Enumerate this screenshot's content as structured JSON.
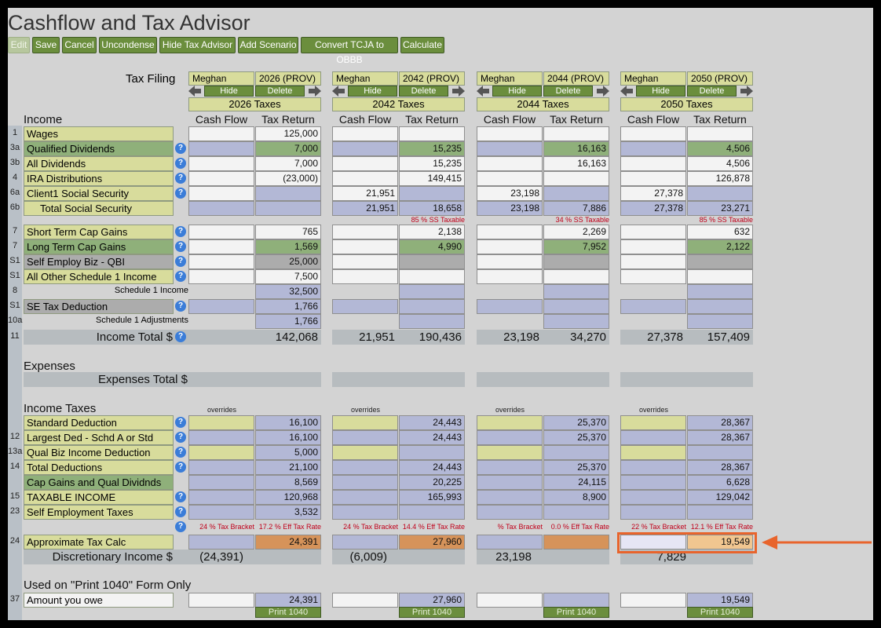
{
  "app": {
    "title": "Cashflow and Tax Advisor"
  },
  "toolbar": [
    "Edit",
    "Save",
    "Cancel",
    "Uncondense",
    "Hide Tax Advisor",
    "Add Scenario",
    "Convert TCJA to OBBB",
    "Calculate"
  ],
  "labels": {
    "tax_filing": "Tax Filing",
    "income": "Income",
    "expenses": "Expenses",
    "expenses_total": "Expenses Total $",
    "income_taxes": "Income Taxes",
    "used_on": "Used on \"Print 1040\" Form Only",
    "cash_flow": "Cash Flow",
    "tax_return": "Tax Return",
    "overrides": "overrides",
    "hide": "Hide",
    "delete": "Delete",
    "print": "Print 1040",
    "help": "?"
  },
  "income_rows": [
    {
      "num": "1",
      "label": "Wages",
      "style": "tan",
      "help": false
    },
    {
      "num": "3a",
      "label": "Qualified Dividends",
      "style": "green",
      "help": true
    },
    {
      "num": "3b",
      "label": "All Dividends",
      "style": "tan",
      "help": true
    },
    {
      "num": "4",
      "label": "IRA Distributions",
      "style": "tan",
      "help": true
    },
    {
      "num": "6a",
      "label": "Client1 Social Security",
      "style": "tan",
      "help": true
    },
    {
      "num": "6b",
      "label": "Total Social Security",
      "style": "tan",
      "help": false
    },
    {
      "num": "7",
      "label": "Short Term Cap Gains",
      "style": "tan",
      "help": true
    },
    {
      "num": "7",
      "label": "Long Term Cap Gains",
      "style": "green",
      "help": true
    },
    {
      "num": "S1",
      "label": "Self Employ Biz - QBI",
      "style": "gray",
      "help": true
    },
    {
      "num": "S1",
      "label": "All Other Schedule 1 Income",
      "style": "tan",
      "help": true
    },
    {
      "num": "8",
      "label": "Schedule 1 Income",
      "style": "plain",
      "help": false
    },
    {
      "num": "S1",
      "label": "SE Tax Deduction",
      "style": "gray",
      "help": true
    },
    {
      "num": "10a",
      "label": "Schedule 1 Adjustments",
      "style": "plain",
      "help": false
    },
    {
      "num": "11",
      "label": "Income Total $",
      "style": "total",
      "help": true
    }
  ],
  "tax_rows": [
    {
      "num": "",
      "label": "Standard Deduction",
      "style": "tan",
      "help": true
    },
    {
      "num": "12",
      "label": "Largest Ded - Schd A or Std",
      "style": "tan",
      "help": true
    },
    {
      "num": "13a",
      "label": "Qual Biz Income Deduction",
      "style": "tan",
      "help": true
    },
    {
      "num": "14",
      "label": "Total Deductions",
      "style": "tan",
      "help": true
    },
    {
      "num": "",
      "label": "Cap Gains and Qual Dividnds",
      "style": "green",
      "help": false
    },
    {
      "num": "15",
      "label": "TAXABLE INCOME",
      "style": "tan",
      "help": true
    },
    {
      "num": "23",
      "label": "Self Employment Taxes",
      "style": "tan",
      "help": true
    },
    {
      "num": "24",
      "label": "Approximate Tax Calc",
      "style": "tan",
      "help": false
    },
    {
      "num": "",
      "label": "Discretionary Income $",
      "style": "total",
      "help": false
    }
  ],
  "form_rows": [
    {
      "num": "37",
      "label": "Amount you owe"
    }
  ],
  "scenarios": [
    {
      "person": "Meghan",
      "year": "2026 (PROV)",
      "header": "2026 Taxes",
      "income": [
        [
          "",
          "125,000"
        ],
        [
          "",
          "7,000"
        ],
        [
          "",
          "7,000"
        ],
        [
          "",
          "(23,000)"
        ],
        [
          "",
          ""
        ],
        [
          "",
          ""
        ],
        [
          "",
          "765"
        ],
        [
          "",
          "1,569"
        ],
        [
          "",
          "25,000"
        ],
        [
          "",
          "7,500"
        ],
        [
          "",
          "32,500"
        ],
        [
          "",
          "1,766"
        ],
        [
          "",
          "1,766"
        ],
        [
          "",
          "142,068"
        ]
      ],
      "ss_taxable": "",
      "tax": [
        [
          "",
          "16,100"
        ],
        [
          "",
          "16,100"
        ],
        [
          "",
          "5,000"
        ],
        [
          "",
          "21,100"
        ],
        [
          "",
          "8,569"
        ],
        [
          "",
          "120,968"
        ],
        [
          "",
          "3,532"
        ],
        [
          "",
          "24,391"
        ],
        [
          "(24,391)",
          ""
        ]
      ],
      "bracket": "24 % Tax Bracket",
      "eff": "17.2 % Eff Tax Rate",
      "owe": "24,391"
    },
    {
      "person": "Meghan",
      "year": "2042 (PROV)",
      "header": "2042 Taxes",
      "income": [
        [
          "",
          ""
        ],
        [
          "",
          "15,235"
        ],
        [
          "",
          "15,235"
        ],
        [
          "",
          "149,415"
        ],
        [
          "21,951",
          ""
        ],
        [
          "21,951",
          "18,658"
        ],
        [
          "",
          "2,138"
        ],
        [
          "",
          "4,990"
        ],
        [
          "",
          ""
        ],
        [
          "",
          ""
        ],
        [
          "",
          ""
        ],
        [
          "",
          ""
        ],
        [
          "",
          ""
        ],
        [
          "21,951",
          "190,436"
        ]
      ],
      "ss_taxable": "85 % SS Taxable",
      "tax": [
        [
          "",
          "24,443"
        ],
        [
          "",
          "24,443"
        ],
        [
          "",
          ""
        ],
        [
          "",
          "24,443"
        ],
        [
          "",
          "20,225"
        ],
        [
          "",
          "165,993"
        ],
        [
          "",
          ""
        ],
        [
          "",
          "27,960"
        ],
        [
          "(6,009)",
          ""
        ]
      ],
      "bracket": "24 % Tax Bracket",
      "eff": "14.4 % Eff Tax Rate",
      "owe": "27,960"
    },
    {
      "person": "Meghan",
      "year": "2044 (PROV)",
      "header": "2044 Taxes",
      "income": [
        [
          "",
          ""
        ],
        [
          "",
          "16,163"
        ],
        [
          "",
          "16,163"
        ],
        [
          "",
          ""
        ],
        [
          "23,198",
          ""
        ],
        [
          "23,198",
          "7,886"
        ],
        [
          "",
          "2,269"
        ],
        [
          "",
          "7,952"
        ],
        [
          "",
          ""
        ],
        [
          "",
          ""
        ],
        [
          "",
          ""
        ],
        [
          "",
          ""
        ],
        [
          "",
          ""
        ],
        [
          "23,198",
          "34,270"
        ]
      ],
      "ss_taxable": "34 % SS Taxable",
      "tax": [
        [
          "",
          "25,370"
        ],
        [
          "",
          "25,370"
        ],
        [
          "",
          ""
        ],
        [
          "",
          "25,370"
        ],
        [
          "",
          "24,115"
        ],
        [
          "",
          "8,900"
        ],
        [
          "",
          ""
        ],
        [
          "",
          ""
        ],
        [
          "23,198",
          ""
        ]
      ],
      "bracket": "% Tax Bracket",
      "eff": "0.0 % Eff Tax Rate",
      "owe": ""
    },
    {
      "person": "Meghan",
      "year": "2050 (PROV)",
      "header": "2050 Taxes",
      "income": [
        [
          "",
          ""
        ],
        [
          "",
          "4,506"
        ],
        [
          "",
          "4,506"
        ],
        [
          "",
          "126,878"
        ],
        [
          "27,378",
          ""
        ],
        [
          "27,378",
          "23,271"
        ],
        [
          "",
          "632"
        ],
        [
          "",
          "2,122"
        ],
        [
          "",
          ""
        ],
        [
          "",
          ""
        ],
        [
          "",
          ""
        ],
        [
          "",
          ""
        ],
        [
          "",
          ""
        ],
        [
          "27,378",
          "157,409"
        ]
      ],
      "ss_taxable": "85 % SS Taxable",
      "tax": [
        [
          "",
          "28,367"
        ],
        [
          "",
          "28,367"
        ],
        [
          "",
          ""
        ],
        [
          "",
          "28,367"
        ],
        [
          "",
          "6,628"
        ],
        [
          "",
          "129,042"
        ],
        [
          "",
          ""
        ],
        [
          "",
          "19,549"
        ],
        [
          "7,829",
          ""
        ]
      ],
      "bracket": "22 % Tax Bracket",
      "eff": "12.1 % Eff Tax Rate",
      "owe": "19,549"
    }
  ],
  "colors": {
    "highlight": "#e8642c",
    "accent": "#6b8e3d"
  }
}
